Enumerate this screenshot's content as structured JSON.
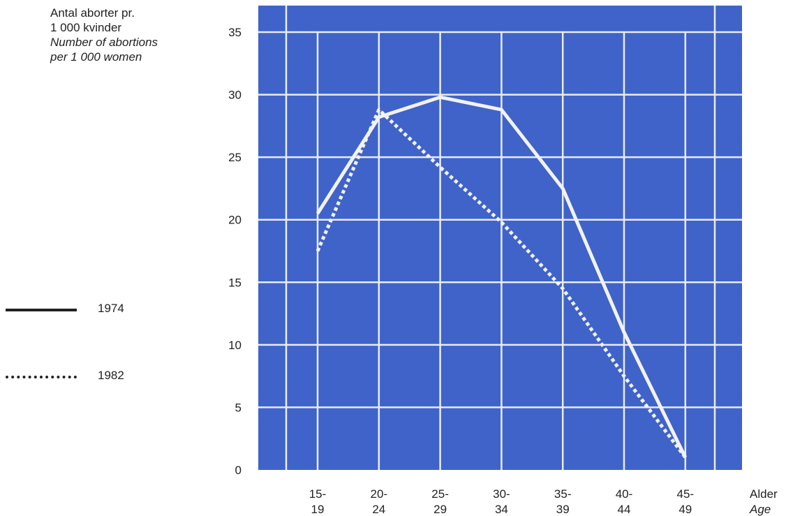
{
  "chart_data": {
    "type": "line",
    "ylabel": [
      "Antal aborter pr.",
      "1 000 kvinder",
      "Number of abortions",
      "per 1 000 women"
    ],
    "xlabel": [
      "Alder",
      "Age"
    ],
    "categories": [
      [
        "15-",
        "19"
      ],
      [
        "20-",
        "24"
      ],
      [
        "25-",
        "29"
      ],
      [
        "30-",
        "34"
      ],
      [
        "35-",
        "39"
      ],
      [
        "40-",
        "44"
      ],
      [
        "45-",
        "49"
      ]
    ],
    "yticks": [
      "0",
      "5",
      "10",
      "15",
      "20",
      "25",
      "30",
      "35"
    ],
    "ylim": [
      0,
      35
    ],
    "grid": true,
    "legend_placement": "left",
    "background_color": "#3f63c9",
    "line_color": "#f2f2f2",
    "series": [
      {
        "name": "1974",
        "style": "solid",
        "values": [
          20.5,
          28.2,
          29.8,
          28.8,
          22.5,
          11,
          1
        ]
      },
      {
        "name": "1982",
        "style": "dotted",
        "values": [
          17.5,
          28.8,
          24.2,
          19.8,
          14.5,
          7.5,
          1
        ]
      }
    ]
  }
}
